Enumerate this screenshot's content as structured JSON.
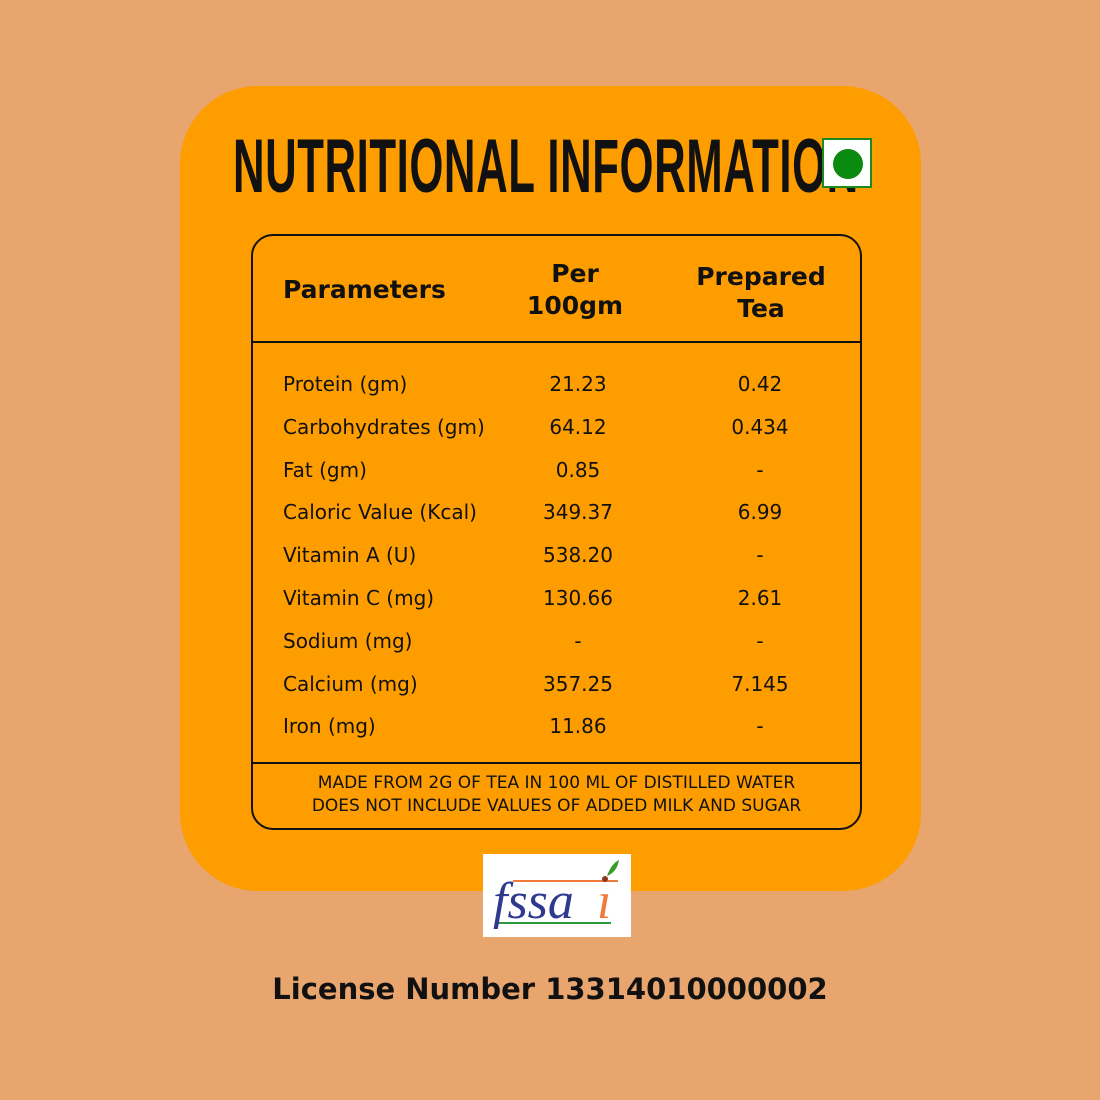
{
  "title": "NUTRITIONAL INFORMATION",
  "veg_icon": "veg-mark-icon",
  "colors": {
    "background": "#E9A56E",
    "card": "#FE9D00",
    "veg_green": "#0b8a10"
  },
  "table": {
    "headers": [
      "Parameters",
      "Per 100gm",
      "Prepared Tea"
    ],
    "rows": [
      [
        "Protein (gm)",
        "21.23",
        "0.42"
      ],
      [
        "Carbohydrates (gm)",
        "64.12",
        "0.434"
      ],
      [
        "Fat (gm)",
        "0.85",
        "-"
      ],
      [
        "Caloric Value (Kcal)",
        "349.37",
        "6.99"
      ],
      [
        "Vitamin A (U)",
        "538.20",
        "-"
      ],
      [
        "Vitamin C (mg)",
        "130.66",
        "2.61"
      ],
      [
        "Sodium (mg)",
        "-",
        "-"
      ],
      [
        "Calcium (mg)",
        "357.25",
        "7.145"
      ],
      [
        "Iron (mg)",
        "11.86",
        "-"
      ]
    ],
    "footnote_1": "MADE FROM 2G OF TEA IN 100 ML OF DISTILLED WATER",
    "footnote_2": "DOES NOT INCLUDE VALUES OF ADDED MILK AND SUGAR"
  },
  "logo": "fssai",
  "license": "License Number 13314010000002"
}
